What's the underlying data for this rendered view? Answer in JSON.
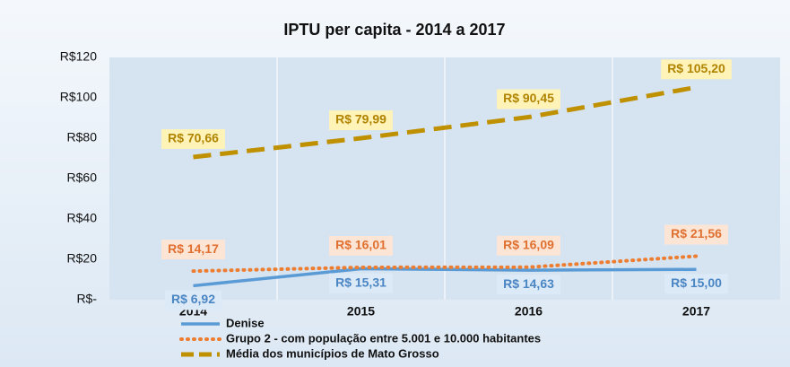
{
  "chart_data": {
    "type": "line",
    "title": "IPTU per capita - 2014 a 2017",
    "categories": [
      "2014",
      "2015",
      "2016",
      "2017"
    ],
    "series": [
      {
        "name": "Denise",
        "color": "#5b9bd5",
        "values": [
          6.92,
          15.31,
          14.63,
          15.0
        ],
        "value_labels": [
          "R$ 6,92",
          "R$ 15,31",
          "R$ 14,63",
          "R$ 15,00"
        ]
      },
      {
        "name": "Grupo 2 - com população entre 5.001 e 10.000 habitantes",
        "color": "#ed7d31",
        "values": [
          14.17,
          16.01,
          16.09,
          21.56
        ],
        "value_labels": [
          "R$ 14,17",
          "R$ 16,01",
          "R$ 16,09",
          "R$ 21,56"
        ]
      },
      {
        "name": "Média dos municípios de Mato Grosso",
        "color": "#bf9000",
        "values": [
          70.66,
          79.99,
          90.45,
          105.2
        ],
        "value_labels": [
          "R$ 70,66",
          "R$ 79,99",
          "R$ 90,45",
          "R$ 105,20"
        ]
      }
    ],
    "ylim": [
      0,
      120
    ],
    "yticks": [
      {
        "value": 0,
        "label": "R$-"
      },
      {
        "value": 20,
        "label": "R$20"
      },
      {
        "value": 40,
        "label": "R$40"
      },
      {
        "value": 60,
        "label": "R$60"
      },
      {
        "value": 80,
        "label": "R$80"
      },
      {
        "value": 100,
        "label": "R$100"
      },
      {
        "value": 120,
        "label": "R$120"
      }
    ],
    "grid": false
  }
}
